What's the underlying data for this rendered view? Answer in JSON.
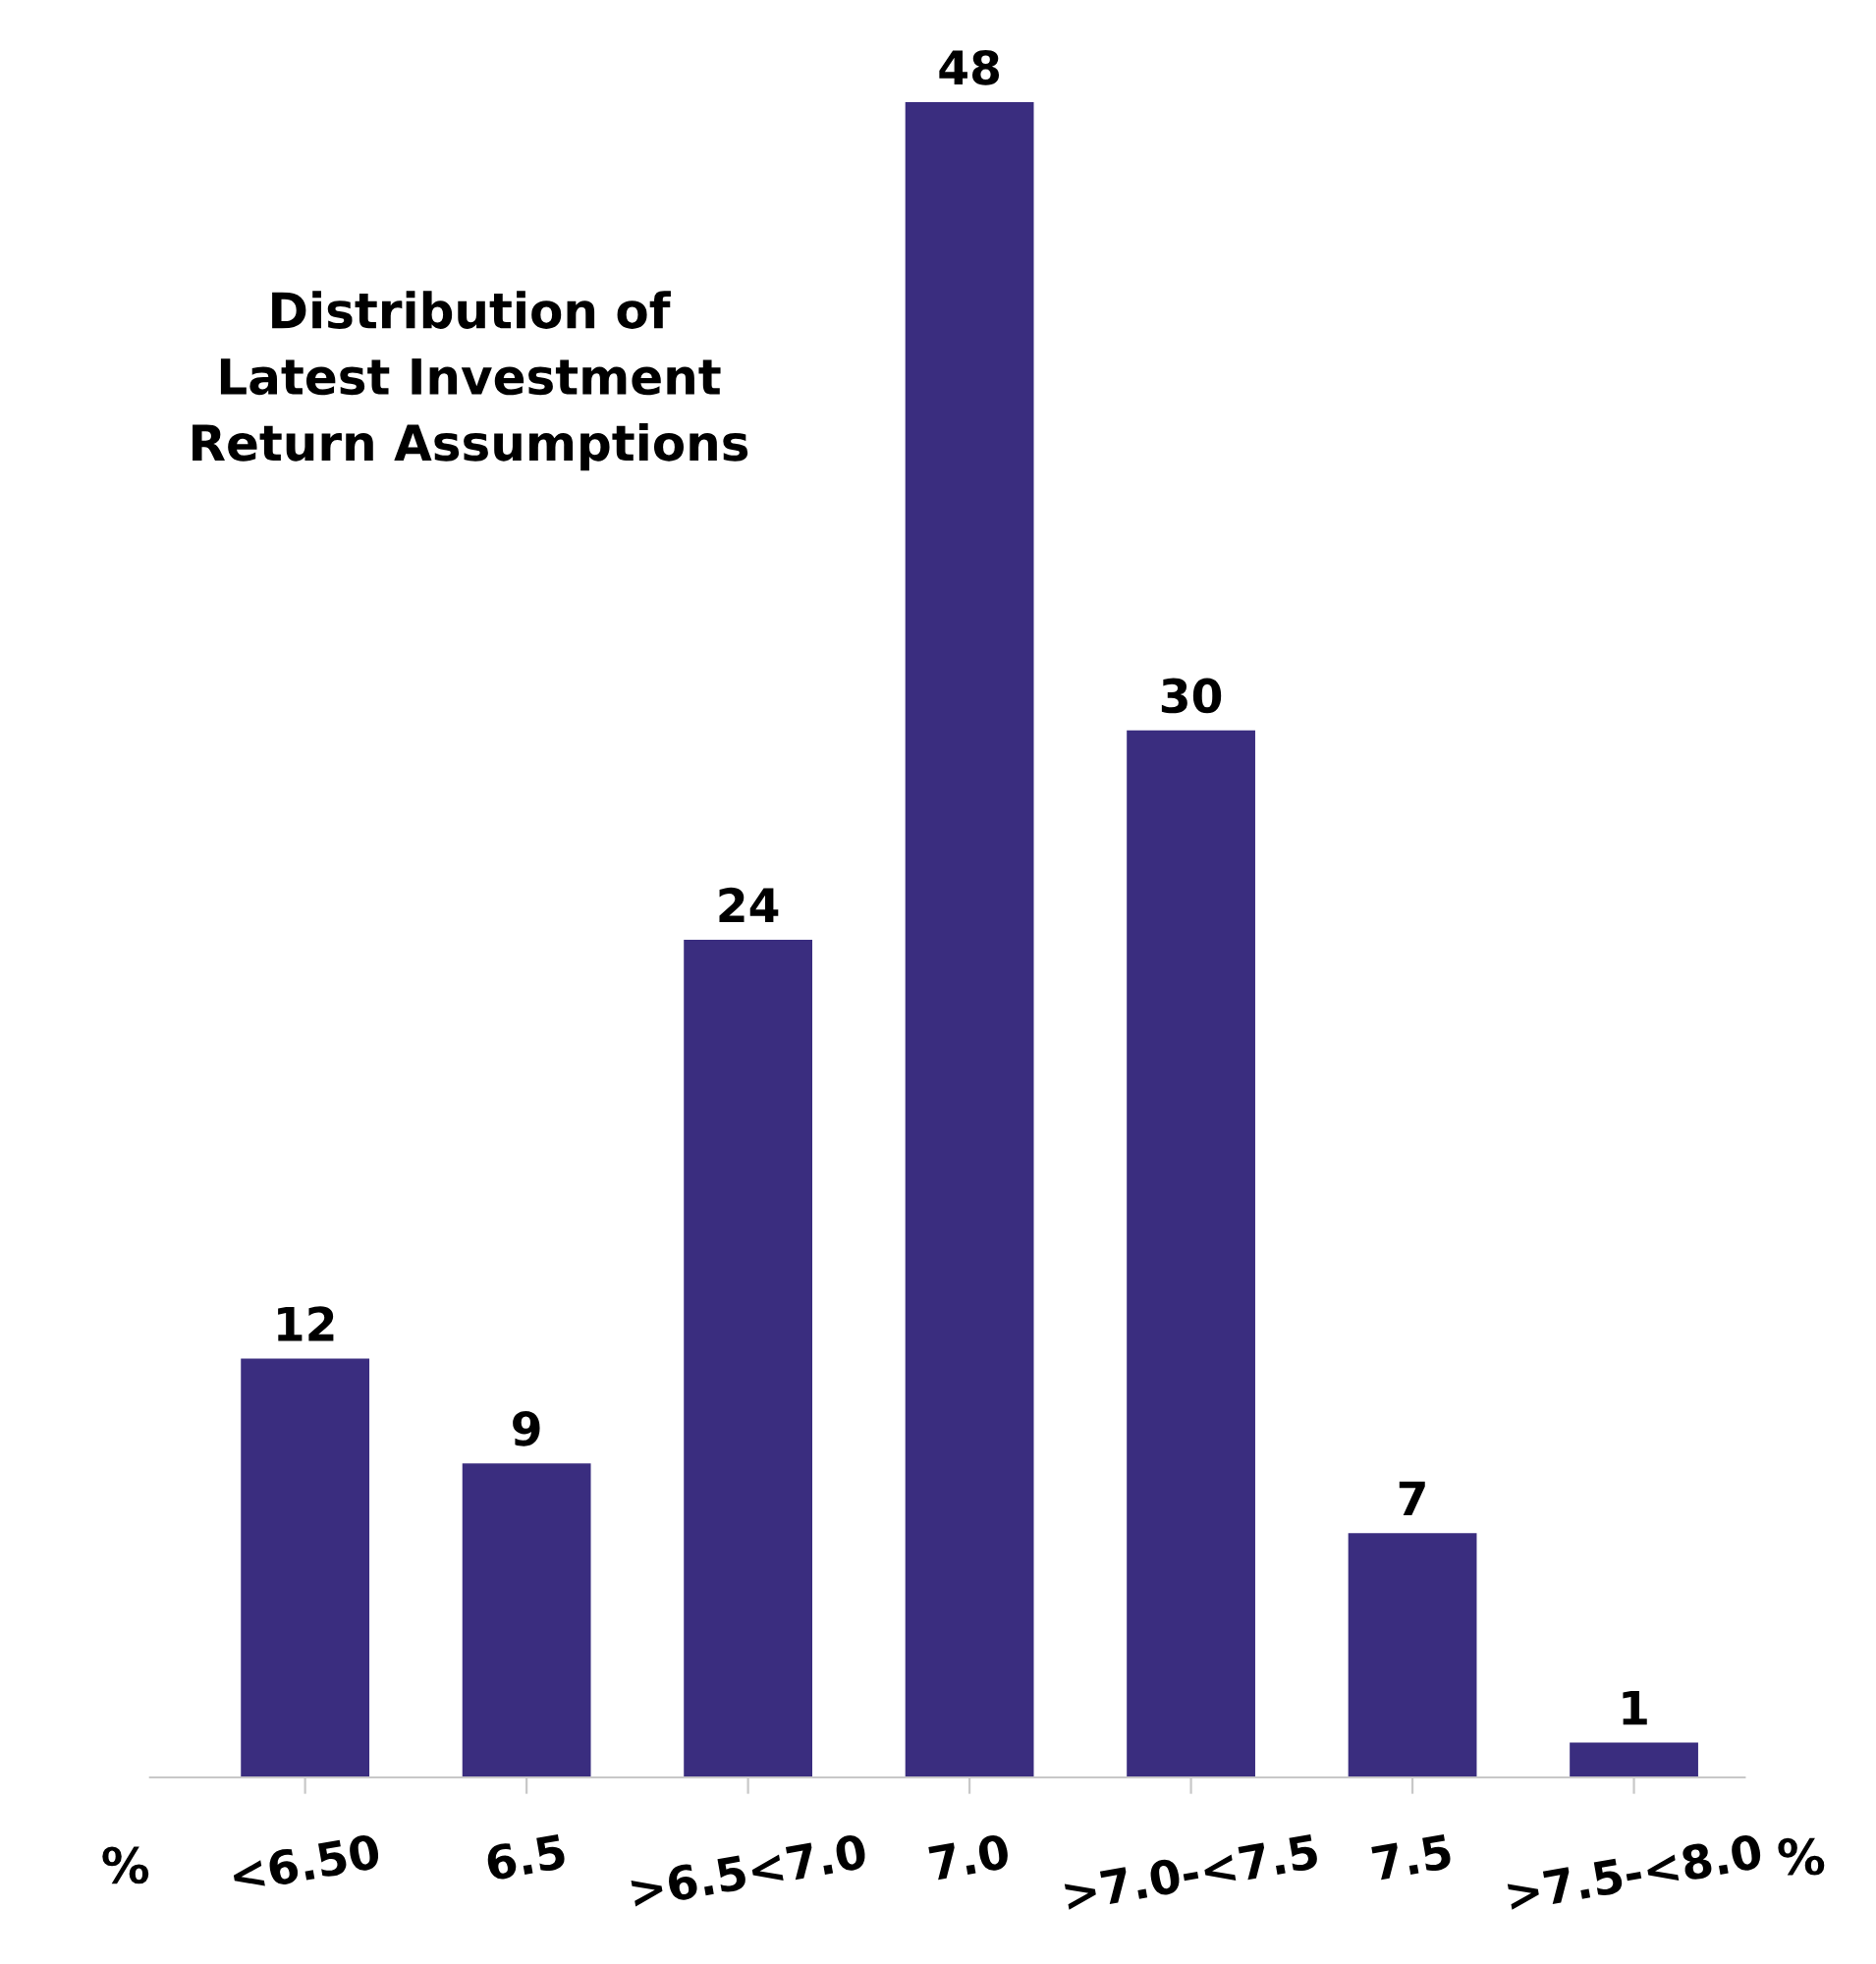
{
  "chart_data": {
    "type": "bar",
    "title": "Distribution of\nLatest Investment\nReturn Assumptions",
    "categories": [
      "<6.50",
      "6.5",
      ">6.5<7.0",
      "7.0",
      ">7.0-<7.5",
      "7.5",
      ">7.5-<8.0"
    ],
    "values": [
      12,
      9,
      24,
      48,
      30,
      7,
      1
    ],
    "color": "#3a2d7f",
    "data_labels": true,
    "grid": false,
    "annotations": [
      "%",
      "%"
    ]
  }
}
